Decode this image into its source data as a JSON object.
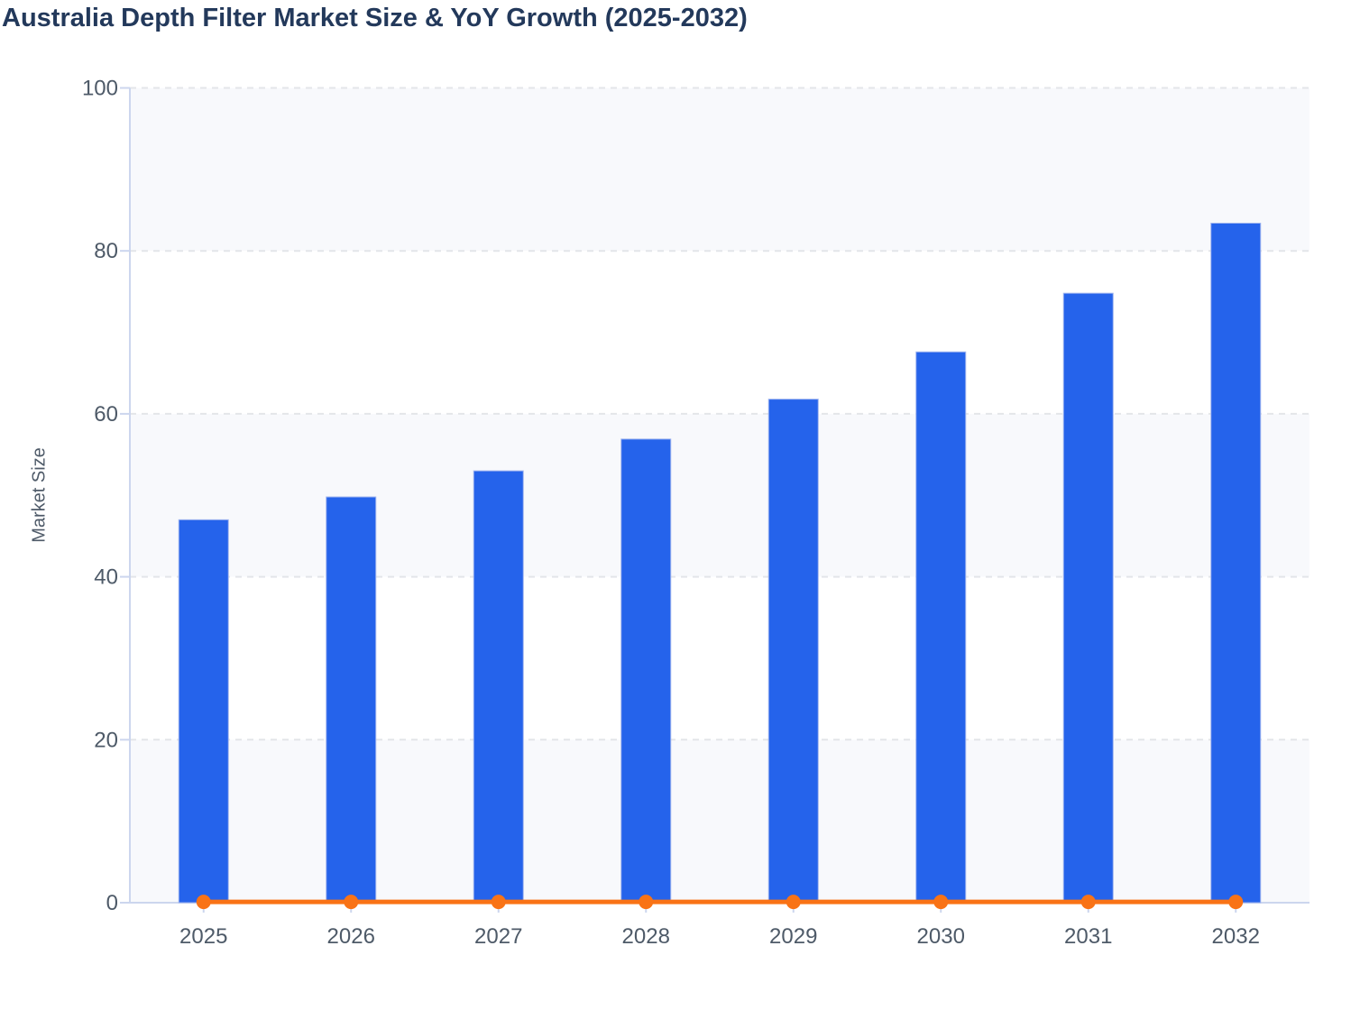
{
  "chart_data": {
    "type": "bar",
    "title": "Australia Depth Filter Market Size & YoY Growth (2025-2032)",
    "ylabel": "Market Size",
    "xlabel": "",
    "categories": [
      "2025",
      "2026",
      "2027",
      "2028",
      "2029",
      "2030",
      "2031",
      "2032"
    ],
    "series": [
      {
        "name": "Market Size",
        "type": "bar",
        "color": "#2563eb",
        "values": [
          47,
          49.8,
          53,
          56.9,
          61.8,
          67.6,
          74.8,
          83.4
        ]
      },
      {
        "name": "YoY Growth",
        "type": "line",
        "color": "#f97316",
        "values": [
          0.1,
          0.1,
          0.1,
          0.1,
          0.1,
          0.1,
          0.1,
          0.1
        ]
      }
    ],
    "ylim": [
      0,
      100
    ],
    "yticks": [
      0,
      20,
      40,
      60,
      80,
      100
    ],
    "legend_position": "none",
    "grid": "horizontal-dashed",
    "plot_bands": "alternating-shaded",
    "colors": {
      "background": "#ffffff",
      "band": "#f8f9fc",
      "gridline": "#e3e5e9",
      "axis_line": "#ccd6ee",
      "axis_text": "#4e5a68",
      "title": "#23395b",
      "bar": "#2563eb",
      "bar_border": "#9fb4ef",
      "line": "#f97316"
    }
  }
}
